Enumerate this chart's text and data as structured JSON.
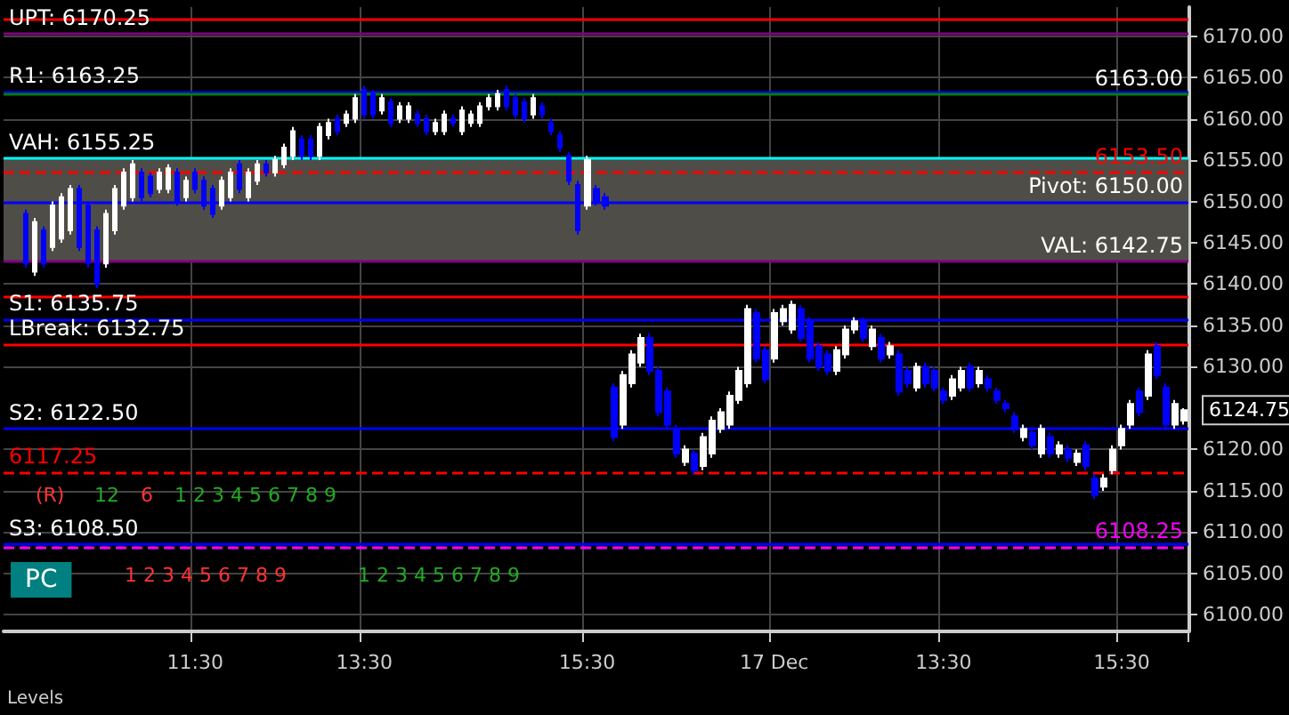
{
  "chart_data": {
    "type": "candlestick",
    "categories": [
      null,
      null,
      null,
      null,
      null,
      null,
      null,
      null,
      null,
      null,
      null,
      null,
      null,
      null,
      null,
      null,
      null,
      null,
      null,
      null,
      null,
      "11:30",
      null,
      null,
      null,
      null,
      null,
      null,
      null,
      null,
      null,
      null,
      null,
      null,
      null,
      null,
      null,
      null,
      null,
      null,
      "13:30",
      null,
      null,
      null,
      null,
      null,
      null,
      null,
      null,
      null,
      null,
      null,
      null,
      null,
      null,
      null,
      null,
      null,
      null,
      null,
      null,
      null,
      null,
      null,
      null,
      "15:30",
      null,
      null,
      null,
      null,
      null,
      null,
      null,
      null,
      null,
      null,
      null,
      null,
      null,
      null,
      null,
      null,
      null,
      null,
      null,
      null,
      "17 Dec",
      null,
      null,
      null,
      null,
      null,
      null,
      null,
      null,
      null,
      null,
      null,
      null,
      null,
      null,
      null,
      null,
      null,
      null,
      "13:30",
      null,
      null,
      null,
      null,
      null,
      null,
      null,
      null,
      null,
      null,
      null,
      null,
      null,
      null,
      null,
      null,
      null,
      null,
      null,
      "15:30",
      null,
      null,
      null,
      null,
      null,
      null,
      null
    ],
    "ohlc": [
      null,
      null,
      [
        6148.5,
        6149,
        6142,
        6142.5
      ],
      [
        6141.5,
        6148,
        6141,
        6147.5
      ],
      [
        6146.5,
        6147,
        6142,
        6142.5
      ],
      [
        6144.5,
        6150,
        6144,
        6149.5
      ],
      [
        6145.5,
        6151,
        6145,
        6150.5
      ],
      [
        6146.5,
        6152,
        6146,
        6151.5
      ],
      [
        6151.5,
        6152,
        6144,
        6144.5
      ],
      [
        6149.5,
        6150,
        6142,
        6142.5
      ],
      [
        6146.5,
        6147,
        6139.5,
        6140
      ],
      [
        6142.5,
        6149,
        6142,
        6148.5
      ],
      [
        6146.5,
        6152,
        6146,
        6151.5
      ],
      [
        6149.5,
        6154,
        6149,
        6153.5
      ],
      [
        6150.5,
        6155,
        6150,
        6154.5
      ],
      [
        6153.5,
        6154,
        6150,
        6150.5
      ],
      [
        6153,
        6153.5,
        6150.5,
        6151
      ],
      [
        6151.5,
        6154,
        6151,
        6153.5
      ],
      [
        6151.5,
        6154.5,
        6151,
        6154
      ],
      [
        6153.5,
        6154,
        6149.5,
        6150
      ],
      [
        6150.5,
        6153,
        6150,
        6152.5
      ],
      [
        6153.5,
        6154,
        6151,
        6151.5
      ],
      [
        6152.5,
        6153,
        6149,
        6149.5
      ],
      [
        6151.5,
        6152,
        6148,
        6148.5
      ],
      [
        6149.5,
        6153,
        6149,
        6152.5
      ],
      [
        6150.5,
        6154,
        6150,
        6153.5
      ],
      [
        6154.5,
        6155,
        6151,
        6151.5
      ],
      [
        6150.5,
        6154,
        6150,
        6153.5
      ],
      [
        6152.5,
        6155,
        6152,
        6154.5
      ],
      [
        6154.5,
        6155,
        6153,
        6153.5
      ],
      [
        6153.5,
        6155.5,
        6153,
        6155
      ],
      [
        6154.5,
        6157,
        6154,
        6156.5
      ],
      [
        6155.5,
        6159,
        6155,
        6158.5
      ],
      [
        6157.5,
        6158,
        6155,
        6155.5
      ],
      [
        6157.5,
        6158,
        6155,
        6155.5
      ],
      [
        6155.5,
        6159.5,
        6155,
        6159
      ],
      [
        6158,
        6160,
        6157.5,
        6159.5
      ],
      [
        6160,
        6160.5,
        6158,
        6158.5
      ],
      [
        6159.5,
        6161,
        6159,
        6160.5
      ],
      [
        6160,
        6163,
        6159.5,
        6162.5
      ],
      [
        6163.5,
        6164,
        6160,
        6160.5
      ],
      [
        6163,
        6163.5,
        6160,
        6160.5
      ],
      [
        6161,
        6163,
        6160.5,
        6162.5
      ],
      [
        6162,
        6162.5,
        6159,
        6159.5
      ],
      [
        6160,
        6162,
        6159.5,
        6161.5
      ],
      [
        6160,
        6162,
        6159.5,
        6161.5
      ],
      [
        6160.5,
        6161,
        6159,
        6159.5
      ],
      [
        6160,
        6160.5,
        6158,
        6158.5
      ],
      [
        6158.5,
        6160,
        6158,
        6159.5
      ],
      [
        6158.5,
        6161,
        6158,
        6160.5
      ],
      [
        6160,
        6160.5,
        6159,
        6159.5
      ],
      [
        6158.5,
        6161.5,
        6158,
        6161
      ],
      [
        6159.5,
        6161,
        6159,
        6160.5
      ],
      [
        6159.5,
        6162,
        6159,
        6161.5
      ],
      [
        6161.5,
        6163,
        6161,
        6162.5
      ],
      [
        6161.5,
        6163.5,
        6161,
        6163
      ],
      [
        6163.5,
        6164,
        6161,
        6161.5
      ],
      [
        6162.5,
        6163,
        6160,
        6160.5
      ],
      [
        6162,
        6162.5,
        6159.5,
        6160
      ],
      [
        6160.5,
        6163,
        6160,
        6162.5
      ],
      [
        6161.5,
        6162,
        6160,
        6160.5
      ],
      [
        6159.5,
        6160,
        6158,
        6158.5
      ],
      [
        6158,
        6158.5,
        6156,
        6156.5
      ],
      [
        6155.5,
        6156,
        6152,
        6152.5
      ],
      [
        6152,
        6152.5,
        6146,
        6146.5
      ],
      [
        6149.5,
        6155.5,
        6149,
        6155
      ],
      [
        6151.5,
        6152,
        6149.5,
        6150
      ],
      [
        6150.5,
        6151,
        6149,
        6149.5
      ],
      [
        6127.5,
        6128,
        6121,
        6121.5
      ],
      [
        6123,
        6129.5,
        6122.5,
        6129
      ],
      [
        6128,
        6132,
        6127.5,
        6131.5
      ],
      [
        6130.5,
        6134,
        6130,
        6133.5
      ],
      [
        6133.5,
        6134,
        6129,
        6129.5
      ],
      [
        6129.5,
        6130,
        6124,
        6124.5
      ],
      [
        6127,
        6127.5,
        6122.5,
        6123
      ],
      [
        6122.5,
        6123,
        6119,
        6119.5
      ],
      [
        6118.5,
        6120.5,
        6118,
        6120
      ],
      [
        6119.5,
        6120,
        6117,
        6117.5
      ],
      [
        6118,
        6122,
        6117.5,
        6121.5
      ],
      [
        6119.5,
        6124,
        6119,
        6123.5
      ],
      [
        6122.5,
        6125,
        6122,
        6124.5
      ],
      [
        6123,
        6127,
        6122.5,
        6126.5
      ],
      [
        6126,
        6130,
        6125.5,
        6129.5
      ],
      [
        6128,
        6137.5,
        6127.5,
        6137
      ],
      [
        6136.5,
        6137,
        6130.5,
        6131
      ],
      [
        6132,
        6132.5,
        6128,
        6128.5
      ],
      [
        6131,
        6137,
        6130.5,
        6136.5
      ],
      [
        6135.5,
        6137.5,
        6135,
        6137
      ],
      [
        6134.5,
        6138,
        6134,
        6137.5
      ],
      [
        6137,
        6137.5,
        6133,
        6133.5
      ],
      [
        6135.5,
        6136,
        6130.5,
        6131
      ],
      [
        6132.5,
        6133,
        6129.5,
        6130
      ],
      [
        6131.5,
        6132,
        6129,
        6129.5
      ],
      [
        6129.5,
        6132.5,
        6129,
        6132
      ],
      [
        6131.5,
        6135,
        6131,
        6134.5
      ],
      [
        6134.5,
        6136,
        6134,
        6135.5
      ],
      [
        6135.5,
        6136,
        6133,
        6133.5
      ],
      [
        6132.5,
        6135,
        6132,
        6134.5
      ],
      [
        6133.5,
        6134,
        6130.5,
        6131
      ],
      [
        6131.5,
        6133,
        6131,
        6132.5
      ],
      [
        6131.5,
        6132,
        6126.5,
        6127
      ],
      [
        6129.5,
        6130,
        6127.5,
        6128
      ],
      [
        6127.5,
        6130.5,
        6127,
        6130
      ],
      [
        6130,
        6130.5,
        6127.5,
        6128
      ],
      [
        6129.5,
        6130,
        6127,
        6127.5
      ],
      [
        6127,
        6127.5,
        6125.5,
        6126
      ],
      [
        6126.5,
        6129,
        6126,
        6128.5
      ],
      [
        6127.5,
        6130,
        6127,
        6129.5
      ],
      [
        6130,
        6130.5,
        6127,
        6127.5
      ],
      [
        6128,
        6130,
        6127.5,
        6129.5
      ],
      [
        6128.5,
        6129,
        6127,
        6127.5
      ],
      [
        6127,
        6127.5,
        6125.5,
        6126
      ],
      [
        6125.5,
        6126,
        6124.5,
        6125
      ],
      [
        6124,
        6124.5,
        6122,
        6122.5
      ],
      [
        6121.5,
        6123,
        6121,
        6122.5
      ],
      [
        6122,
        6122.5,
        6120,
        6120.5
      ],
      [
        6119.5,
        6123,
        6119,
        6122.5
      ],
      [
        6121.5,
        6122,
        6119,
        6119.5
      ],
      [
        6119.5,
        6121,
        6119,
        6120.5
      ],
      [
        6120,
        6120.5,
        6118.5,
        6119
      ],
      [
        6118.5,
        6120,
        6118,
        6119.5
      ],
      [
        6120.5,
        6121,
        6117.5,
        6118
      ],
      [
        6116.5,
        6117,
        6114,
        6114.5
      ],
      [
        6115.5,
        6117,
        6115,
        6116.5
      ],
      [
        6117.5,
        6120.5,
        6117,
        6120
      ],
      [
        6120.5,
        6123,
        6120,
        6122.5
      ],
      [
        6123,
        6126,
        6122.5,
        6125.5
      ],
      [
        6127,
        6127.5,
        6124,
        6124.5
      ],
      [
        6126.5,
        6132,
        6126,
        6131.5
      ],
      [
        6132.5,
        6133,
        6128.5,
        6129
      ],
      [
        6127.5,
        6128,
        6122.5,
        6123
      ],
      [
        6123,
        6126,
        6122.5,
        6125.5
      ],
      [
        6123.5,
        6125,
        6123,
        6124.75
      ]
    ],
    "colors": [
      null,
      null,
      "#0000ff",
      "#ffffff",
      "#0000ff",
      "#ffffff",
      "#ffffff",
      "#ffffff",
      "#0000ff",
      "#0000ff",
      "#0000ff",
      "#ffffff",
      "#ffffff",
      "#ffffff",
      "#ffffff",
      "#0000ff",
      "#0000ff",
      "#ffffff",
      "#ffffff",
      "#0000ff",
      "#ffffff",
      "#0000ff",
      "#0000ff",
      "#0000ff",
      "#ffffff",
      "#ffffff",
      "#0000ff",
      "#ffffff",
      "#ffffff",
      "#0000ff",
      "#ffffff",
      "#ffffff",
      "#ffffff",
      "#0000ff",
      "#0000ff",
      "#ffffff",
      "#ffffff",
      "#0000ff",
      "#ffffff",
      "#ffffff",
      "#0000ff",
      "#0000ff",
      "#ffffff",
      "#0000ff",
      "#ffffff",
      "#ffffff",
      "#0000ff",
      "#0000ff",
      "#ffffff",
      "#ffffff",
      "#0000ff",
      "#ffffff",
      "#ffffff",
      "#ffffff",
      "#ffffff",
      "#ffffff",
      "#0000ff",
      "#0000ff",
      "#0000ff",
      "#ffffff",
      "#0000ff",
      "#0000ff",
      "#0000ff",
      "#0000ff",
      "#0000ff",
      "#ffffff",
      "#0000ff",
      "#0000ff",
      "#0000ff",
      "#ffffff",
      "#ffffff",
      "#ffffff",
      "#0000ff",
      "#0000ff",
      "#0000ff",
      "#0000ff",
      "#ffffff",
      "#0000ff",
      "#ffffff",
      "#ffffff",
      "#ffffff",
      "#ffffff",
      "#ffffff",
      "#ffffff",
      "#0000ff",
      "#0000ff",
      "#ffffff",
      "#ffffff",
      "#ffffff",
      "#0000ff",
      "#0000ff",
      "#0000ff",
      "#0000ff",
      "#ffffff",
      "#ffffff",
      "#ffffff",
      "#0000ff",
      "#ffffff",
      "#0000ff",
      "#ffffff",
      "#0000ff",
      "#0000ff",
      "#ffffff",
      "#0000ff",
      "#0000ff",
      "#0000ff",
      "#ffffff",
      "#ffffff",
      "#0000ff",
      "#ffffff",
      "#0000ff",
      "#0000ff",
      "#0000ff",
      "#0000ff",
      "#ffffff",
      "#0000ff",
      "#ffffff",
      "#0000ff",
      "#ffffff",
      "#0000ff",
      "#ffffff",
      "#0000ff",
      "#0000ff",
      "#ffffff",
      "#ffffff",
      "#ffffff",
      "#ffffff",
      "#0000ff",
      "#ffffff",
      "#0000ff",
      "#0000ff",
      "#ffffff",
      "#ffffff"
    ],
    "ylim": [
      6098,
      6173.5
    ],
    "yticks": [
      {
        "value": 6100,
        "label": "6100.00"
      },
      {
        "value": 6105,
        "label": "6105.00"
      },
      {
        "value": 6110,
        "label": "6110.00"
      },
      {
        "value": 6115,
        "label": "6115.00"
      },
      {
        "value": 6120,
        "label": "6120.00"
      },
      {
        "value": 6130,
        "label": "6130.00"
      },
      {
        "value": 6135,
        "label": "6135.00"
      },
      {
        "value": 6140,
        "label": "6140.00"
      },
      {
        "value": 6145,
        "label": "6145.00"
      },
      {
        "value": 6150,
        "label": "6150.00"
      },
      {
        "value": 6155,
        "label": "6155.00"
      },
      {
        "value": 6160,
        "label": "6160.00"
      },
      {
        "value": 6165,
        "label": "6165.00"
      },
      {
        "value": 6170,
        "label": "6170.00"
      }
    ],
    "grid": true,
    "bands": [
      {
        "axis": "y",
        "from": 6142.75,
        "to": 6155.25,
        "label": null,
        "color": "#4f4d47"
      }
    ],
    "ref_lines": [
      {
        "axis": "y",
        "value": 6172,
        "label": null,
        "color": "#ff0000"
      },
      {
        "axis": "y",
        "value": 6170.25,
        "label": "UPT: 6170.25",
        "color": "#800080"
      },
      {
        "axis": "y",
        "value": 6163.25,
        "label": "R1: 6163.25",
        "color": "#0000ff"
      },
      {
        "axis": "y",
        "value": 6163,
        "label": "6163.00",
        "color": "#008000"
      },
      {
        "axis": "y",
        "value": 6155.25,
        "label": "VAH: 6155.25",
        "color": "#00ffff"
      },
      {
        "axis": "y",
        "value": 6153.5,
        "label": "6153.50",
        "color": "#ff0000",
        "line_style": "dashed"
      },
      {
        "axis": "y",
        "value": 6150,
        "label": "Pivot: 6150.00",
        "color": "#0000ff"
      },
      {
        "axis": "y",
        "value": 6142.75,
        "label": "VAL: 6142.75",
        "color": "#800080"
      },
      {
        "axis": "y",
        "value": 6135.75,
        "label": "S1: 6135.75",
        "color": "#0000ff"
      },
      {
        "axis": "y",
        "value": 6138.5,
        "label": null,
        "color": "#ff0000"
      },
      {
        "axis": "y",
        "value": 6132.75,
        "label": "LBreak: 6132.75",
        "color": "#ff0000"
      },
      {
        "axis": "y",
        "value": 6122.5,
        "label": "S2: 6122.50",
        "color": "#0000ff"
      },
      {
        "axis": "y",
        "value": 6117.25,
        "label": "6117.25",
        "color": "#ff0000",
        "line_style": "dashed"
      },
      {
        "axis": "y",
        "value": 6108.5,
        "label": "S3: 6108.50",
        "color": "#0000ff"
      },
      {
        "axis": "y",
        "value": 6108.25,
        "label": "6108.25",
        "color": "#ff00ff",
        "line_style": "dashed"
      }
    ],
    "annotations": [
      "Levels",
      "PC",
      "(R)",
      "12",
      "6",
      "1 2 3 4 5 6 7 8 9",
      "1 2 3 4 5 6 7 8 9",
      "1 2 3 4 5 6 7 8 9",
      "6124.75"
    ]
  }
}
